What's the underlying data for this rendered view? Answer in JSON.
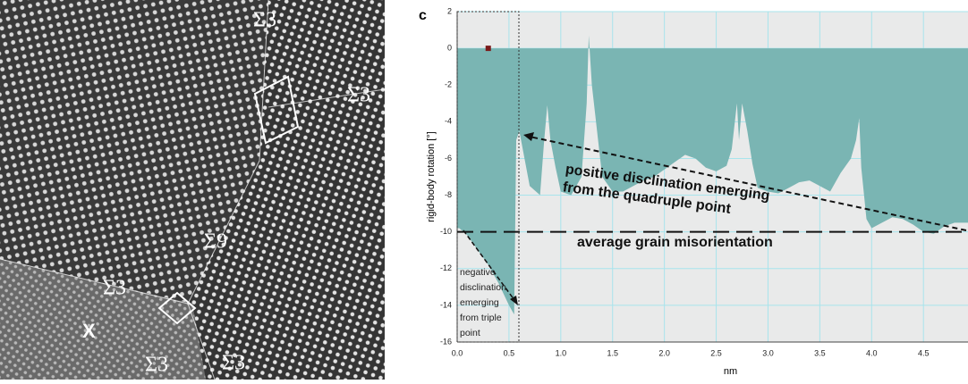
{
  "image_labels": [
    "Σ3",
    "Σ3",
    "Σ9",
    "Σ3",
    "Σ3",
    "Σ3",
    "X"
  ],
  "chart_data": {
    "type": "area",
    "panel_label": "c",
    "y_label": "rigid-body rotation [°]",
    "x_label": "nm",
    "x": [
      0.0,
      0.02,
      0.1,
      0.2,
      0.3,
      0.4,
      0.5,
      0.55,
      0.57,
      0.6,
      0.65,
      0.7,
      0.8,
      0.84,
      0.87,
      0.9,
      0.95,
      1.0,
      1.1,
      1.2,
      1.25,
      1.27,
      1.3,
      1.35,
      1.4,
      1.5,
      1.6,
      1.7,
      1.8,
      1.9,
      2.0,
      2.1,
      2.2,
      2.3,
      2.4,
      2.5,
      2.6,
      2.65,
      2.7,
      2.72,
      2.75,
      2.8,
      2.85,
      2.9,
      3.0,
      3.1,
      3.2,
      3.3,
      3.4,
      3.5,
      3.6,
      3.7,
      3.8,
      3.85,
      3.88,
      3.9,
      3.95,
      4.0,
      4.1,
      4.2,
      4.3,
      4.4,
      4.5,
      4.6,
      4.7,
      4.8,
      4.93
    ],
    "values": [
      -9.8,
      -9.8,
      -10.2,
      -11.0,
      -11.8,
      -12.8,
      -14.0,
      -14.5,
      -5.0,
      -4.5,
      -6.0,
      -7.5,
      -8.0,
      -5.0,
      -3.1,
      -5.0,
      -6.5,
      -7.8,
      -8.0,
      -7.0,
      -3.0,
      0.7,
      -2.0,
      -4.5,
      -7.0,
      -7.8,
      -7.8,
      -7.5,
      -7.2,
      -7.0,
      -6.6,
      -6.2,
      -5.8,
      -6.0,
      -6.5,
      -6.7,
      -6.4,
      -5.5,
      -3.0,
      -5.0,
      -3.0,
      -4.5,
      -6.3,
      -7.6,
      -7.8,
      -7.9,
      -7.6,
      -7.3,
      -7.2,
      -7.5,
      -7.8,
      -6.8,
      -6.0,
      -5.0,
      -3.8,
      -6.5,
      -9.3,
      -9.8,
      -9.5,
      -9.2,
      -9.3,
      -9.6,
      -10.0,
      -10.1,
      -9.7,
      -9.5,
      -9.5
    ],
    "color": "#7ab5b3",
    "xlim": [
      0,
      4.93
    ],
    "ylim": [
      -16,
      2
    ],
    "xticks": [
      {
        "value": 0,
        "label": "0.0"
      },
      0.5,
      {
        "value": 1,
        "label": "1.0"
      },
      1.5,
      {
        "value": 2,
        "label": "2.0"
      },
      2.5,
      {
        "value": 3,
        "label": "3.0"
      },
      3.5,
      {
        "value": 4,
        "label": "4.0"
      },
      4.5
    ],
    "yticks": [
      2,
      0,
      -2,
      -4,
      -6,
      -8,
      -10,
      -12,
      -14,
      -16
    ],
    "grid": true,
    "reference_line": {
      "value": -10,
      "label": "average grain misorientation"
    },
    "annotations": {
      "positive": [
        "positive disclination emerging",
        "from the quadruple point"
      ],
      "negative": [
        "negative",
        "disclination",
        "emerging",
        "from triple",
        "point"
      ]
    }
  }
}
